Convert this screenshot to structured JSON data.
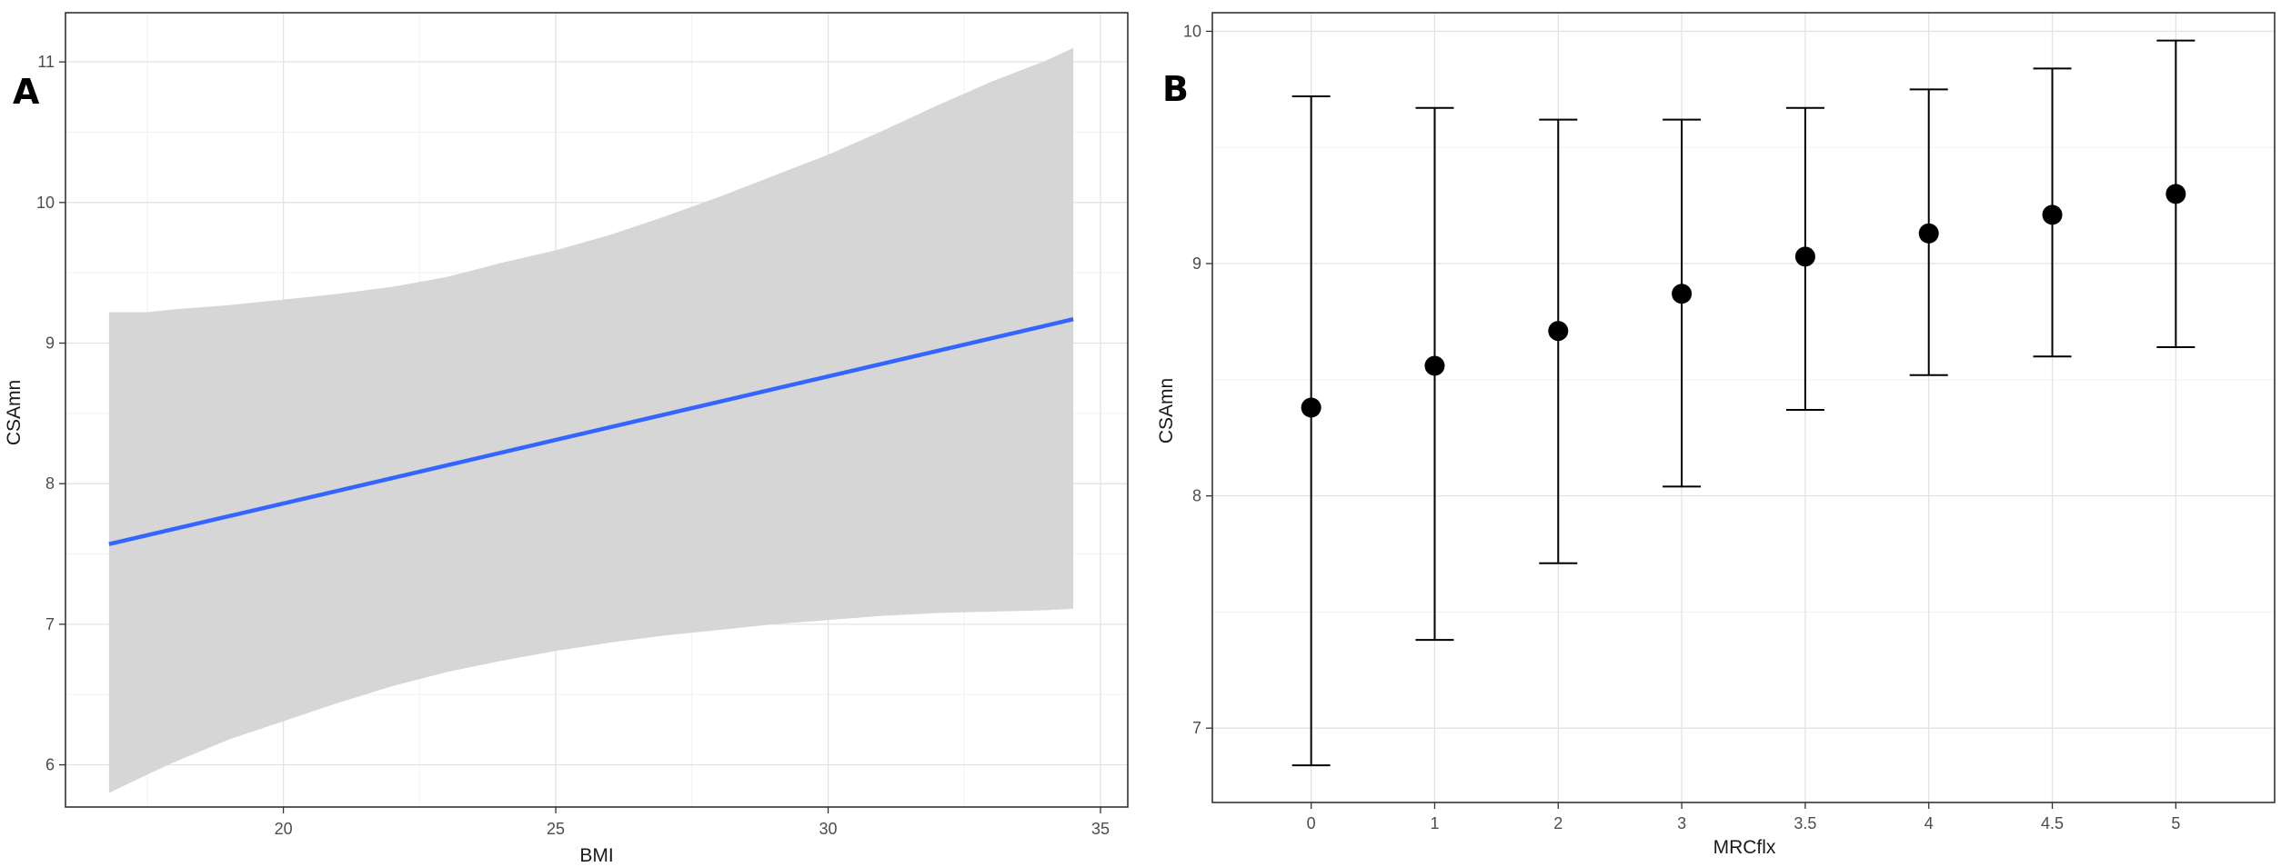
{
  "colors": {
    "background": "#ffffff",
    "grid_major": "#e3e3e3",
    "grid_minor": "#f1f1f1",
    "panel_border": "#333333",
    "ribbon": "#d6d6d6",
    "fit_line": "#3366ff",
    "marker": "#000000"
  },
  "chart_data": [
    {
      "panel_tag": "A",
      "type": "line",
      "title": "",
      "xlabel": "BMI",
      "ylabel": "CSAmn",
      "xlim": [
        16.0,
        35.5
      ],
      "ylim": [
        5.7,
        11.35
      ],
      "x_ticks": [
        20,
        25,
        30,
        35
      ],
      "x_tick_labels": [
        "20",
        "25",
        "30",
        "35"
      ],
      "x_minor_ticks": [
        17.5,
        22.5,
        27.5,
        32.5
      ],
      "y_ticks": [
        6,
        7,
        8,
        9,
        10,
        11
      ],
      "y_tick_labels": [
        "6",
        "7",
        "8",
        "9",
        "10",
        "11"
      ],
      "y_minor_ticks": [
        6.5,
        7.5,
        8.5,
        9.5,
        10.5
      ],
      "grid": true,
      "series": [
        {
          "x": [
            16.8,
            34.5
          ],
          "y": [
            7.57,
            9.17
          ]
        }
      ],
      "confidence_band": {
        "x": [
          16.8,
          17.5,
          18,
          19,
          20,
          21,
          22,
          23,
          24,
          25,
          26,
          27,
          28,
          29,
          30,
          31,
          32,
          33,
          34,
          34.5
        ],
        "lower": [
          5.8,
          5.93,
          6.02,
          6.18,
          6.31,
          6.44,
          6.56,
          6.66,
          6.74,
          6.81,
          6.87,
          6.92,
          6.96,
          7.0,
          7.03,
          7.06,
          7.08,
          7.09,
          7.1,
          7.11
        ],
        "upper": [
          9.22,
          9.22,
          9.24,
          9.27,
          9.31,
          9.35,
          9.4,
          9.47,
          9.57,
          9.66,
          9.77,
          9.9,
          10.04,
          10.19,
          10.34,
          10.51,
          10.69,
          10.86,
          11.01,
          11.1
        ]
      }
    },
    {
      "panel_tag": "B",
      "type": "scatter",
      "title": "",
      "xlabel": "MRCflx",
      "ylabel": "CSAmn",
      "categories": [
        "0",
        "1",
        "2",
        "3",
        "3.5",
        "4",
        "4.5",
        "5"
      ],
      "ylim": [
        6.68,
        10.08
      ],
      "y_ticks": [
        7,
        8,
        9,
        10
      ],
      "y_tick_labels": [
        "7",
        "8",
        "9",
        "10"
      ],
      "y_minor_ticks": [
        7.5,
        8.5,
        9.5
      ],
      "grid": true,
      "series": [
        {
          "values": [
            8.38,
            8.56,
            8.71,
            8.87,
            9.03,
            9.13,
            9.21,
            9.3
          ],
          "lower": [
            6.84,
            7.38,
            7.71,
            8.04,
            8.37,
            8.52,
            8.6,
            8.64
          ],
          "upper": [
            9.72,
            9.67,
            9.62,
            9.62,
            9.67,
            9.75,
            9.84,
            9.96
          ]
        }
      ]
    }
  ]
}
